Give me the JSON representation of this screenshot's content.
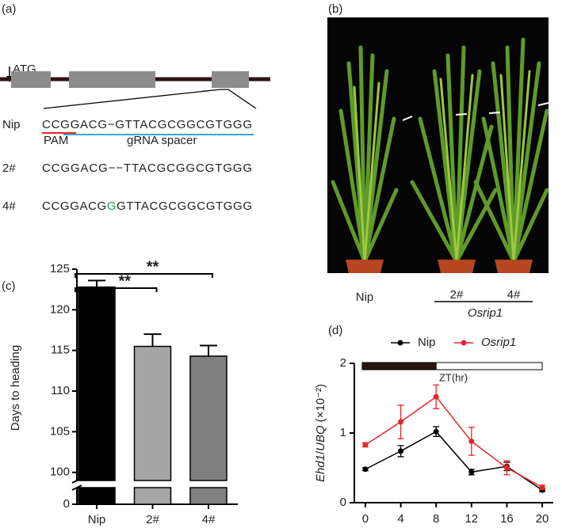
{
  "panels": {
    "a": "(a)",
    "b": "(b)"
  },
  "gene": {
    "start": "ATG",
    "pam": "PAM",
    "spacer": "gRNA spacer",
    "rows": [
      {
        "label": "Nip",
        "seq": [
          "CCGGACG−GTTACGCGGCGTGGG"
        ]
      },
      {
        "label": "2#",
        "seq": [
          "CCGGACG−−TTACGCGGCGTGGG"
        ]
      },
      {
        "label": "4#",
        "seq": [
          "CCGGACG",
          "G",
          "GTTACGCGGCGTGGG"
        ]
      }
    ]
  },
  "photo": {
    "labels": [
      "Nip",
      "2#",
      "4#"
    ],
    "group": "Osrip1"
  },
  "chart_data": [
    {
      "type": "bar",
      "panel": "(c)",
      "ylabel": "Days to heading",
      "categories": [
        "Nip",
        "2#",
        "4#"
      ],
      "values": [
        122.8,
        115.5,
        114.3
      ],
      "errors": [
        0.8,
        1.5,
        1.3
      ],
      "colors": [
        "#000000",
        "#a6a6a6",
        "#808080"
      ],
      "ylim": [
        0,
        125
      ],
      "axis_break": [
        2,
        99
      ],
      "yticks": [
        0,
        100,
        105,
        110,
        115,
        120,
        125
      ],
      "annotations": [
        {
          "text": "**",
          "from": "Nip",
          "to": "4#"
        },
        {
          "text": "**",
          "from": "Nip",
          "to": "2#"
        }
      ]
    },
    {
      "type": "line",
      "panel": "(d)",
      "ylabel": {
        "gene": "Ehd1",
        "sep": "/",
        "ref": "UBQ",
        "unit": "(×10⁻²)"
      },
      "x": [
        0,
        4,
        8,
        12,
        16,
        20
      ],
      "xlim": [
        -1.25,
        21.25
      ],
      "xticks": [
        0,
        4,
        8,
        12,
        16,
        20
      ],
      "ylim": [
        0,
        2
      ],
      "yticks": [
        0,
        1,
        2
      ],
      "light_bar": {
        "label": "ZT(hr)",
        "dark": [
          0,
          8
        ],
        "light": [
          8,
          20
        ]
      },
      "series": [
        {
          "name": "Nip",
          "color": "#000000",
          "values": [
            0.48,
            0.74,
            1.02,
            0.44,
            0.52,
            0.18
          ],
          "errors": [
            0.02,
            0.08,
            0.07,
            0.04,
            0.06,
            0.02
          ]
        },
        {
          "name": "Osrip1",
          "color": "#e8262b",
          "values": [
            0.83,
            1.16,
            1.52,
            0.88,
            0.5,
            0.22
          ],
          "errors": [
            0.03,
            0.24,
            0.17,
            0.2,
            0.1,
            0.03
          ]
        }
      ]
    }
  ]
}
